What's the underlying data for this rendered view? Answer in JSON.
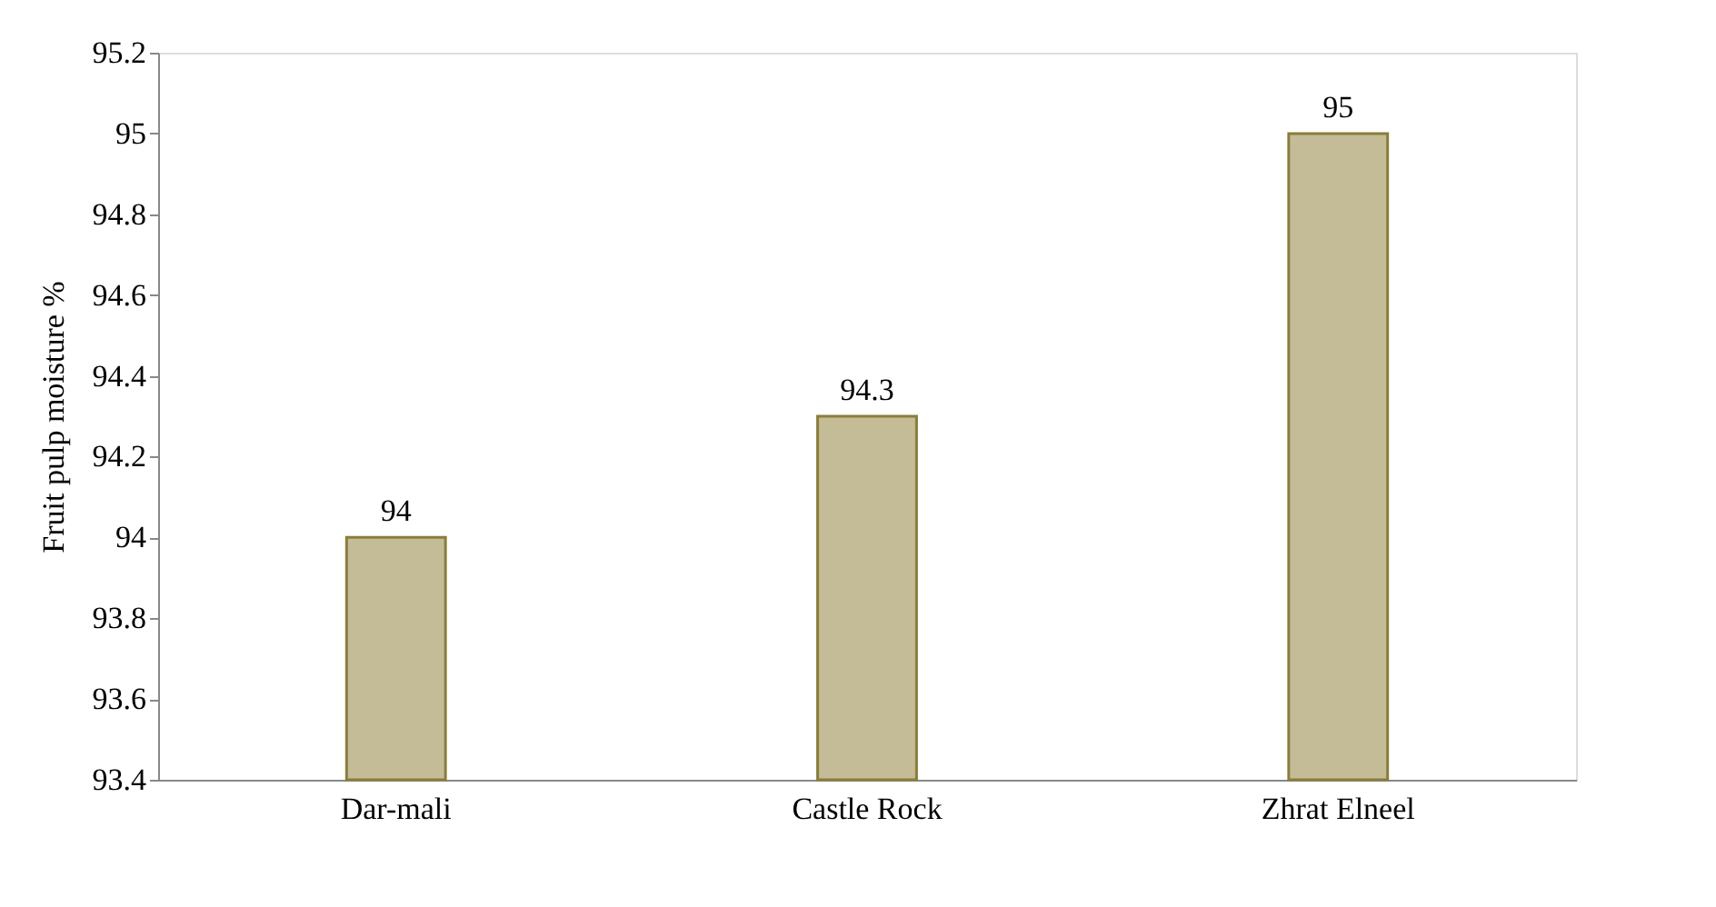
{
  "chart_data": {
    "type": "bar",
    "ylabel": "Fruit pulp moisture %",
    "categories": [
      "Dar-mali",
      "Castle Rock",
      "Zhrat Elneel"
    ],
    "values": [
      94,
      94.3,
      95
    ],
    "color": "#c4bc96",
    "ylim": [
      93.4,
      95.2
    ],
    "yticks": [
      93.4,
      93.6,
      93.8,
      94,
      94.2,
      94.4,
      94.6,
      94.8,
      95,
      95.2
    ],
    "data_labels": true
  }
}
